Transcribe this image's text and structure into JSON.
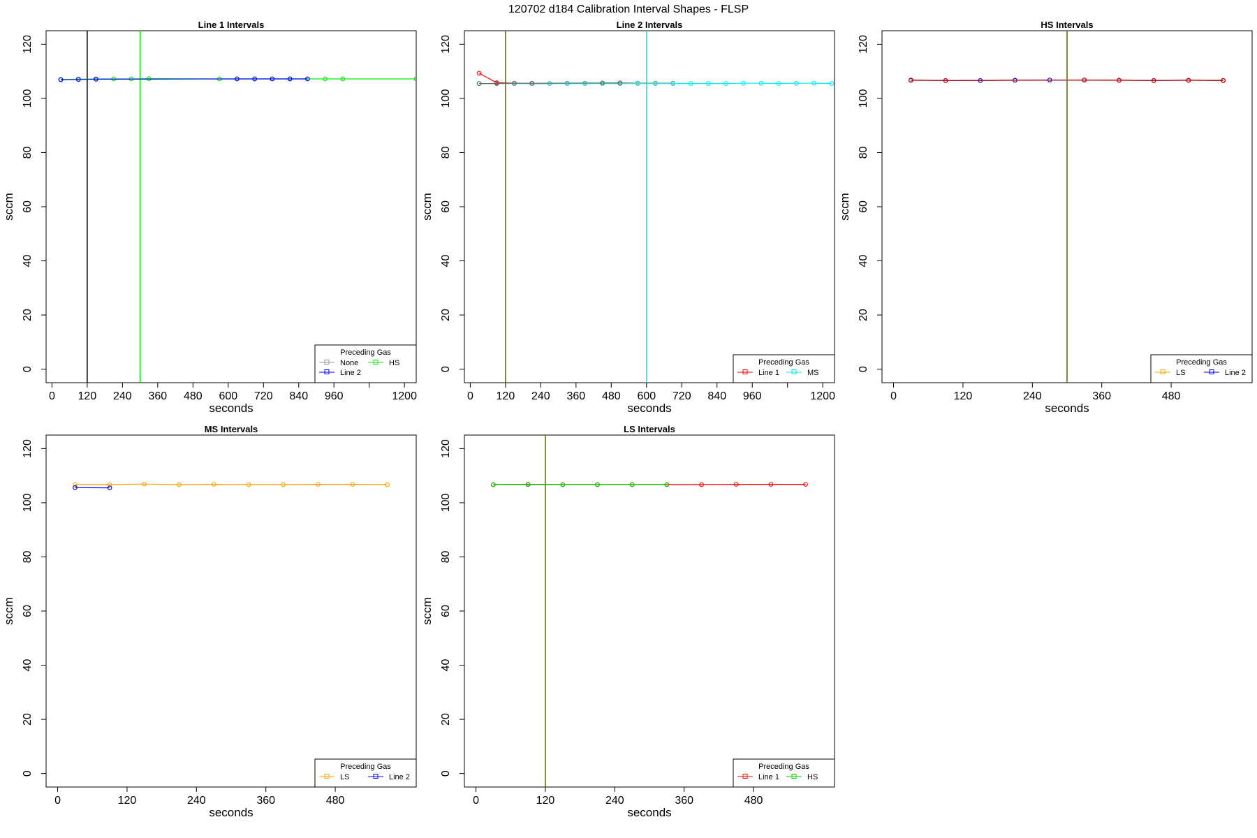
{
  "figure": {
    "title": "120702   d184   Calibration Interval Shapes - FLSP"
  },
  "chart_data": [
    {
      "type": "line",
      "title": "Line 1 Intervals",
      "xlabel": "seconds",
      "ylabel": "sccm",
      "xlim": [
        -20,
        1240
      ],
      "ylim": [
        -5,
        125
      ],
      "xticks": [
        0,
        120,
        240,
        360,
        480,
        600,
        720,
        840,
        960,
        1080,
        1200
      ],
      "xtick_labels": [
        "0",
        "120",
        "240",
        "360",
        "480",
        "600",
        "720",
        "840",
        "960",
        "",
        "1200"
      ],
      "yticks": [
        0,
        20,
        40,
        60,
        80,
        100,
        120
      ],
      "vlines": [
        {
          "x": 120,
          "color": "#000000"
        },
        {
          "x": 300,
          "color": "#00ee00"
        }
      ],
      "legend": {
        "title": "Preceding Gas",
        "position": "bottom-right",
        "columns": 2,
        "entries": [
          "None",
          "HS",
          "Line 2"
        ]
      },
      "series": [
        {
          "name": "None",
          "color": "#999999",
          "x": [
            30,
            90,
            150
          ],
          "y": [
            107.0,
            107.1,
            107.2
          ]
        },
        {
          "name": "HS",
          "color": "#00ee00",
          "x": [
            30,
            90,
            150,
            210,
            270,
            330,
            570,
            630,
            690,
            750,
            810,
            870,
            930,
            990,
            1240
          ],
          "y": [
            107.0,
            107.1,
            107.2,
            107.2,
            107.2,
            107.3,
            107.2,
            107.2,
            107.2,
            107.2,
            107.2,
            107.2,
            107.2,
            107.2,
            107.2
          ]
        },
        {
          "name": "Line 2",
          "color": "#0000ff",
          "x": [
            30,
            90,
            150,
            630,
            690,
            750,
            810,
            870
          ],
          "y": [
            106.9,
            107.0,
            107.1,
            107.2,
            107.2,
            107.2,
            107.2,
            107.2
          ]
        }
      ]
    },
    {
      "type": "line",
      "title": "Line 2 Intervals",
      "xlabel": "seconds",
      "ylabel": "sccm",
      "xlim": [
        -20,
        1240
      ],
      "ylim": [
        -5,
        125
      ],
      "xticks": [
        0,
        120,
        240,
        360,
        480,
        600,
        720,
        840,
        960,
        1080,
        1200
      ],
      "xtick_labels": [
        "0",
        "120",
        "240",
        "360",
        "480",
        "600",
        "720",
        "840",
        "960",
        "",
        "1200"
      ],
      "yticks": [
        0,
        20,
        40,
        60,
        80,
        100,
        120
      ],
      "vlines": [
        {
          "x": 120,
          "color": "#556b00"
        },
        {
          "x": 600,
          "color": "#00eeee"
        }
      ],
      "legend": {
        "title": "Preceding Gas",
        "position": "bottom-right",
        "columns": 2,
        "entries": [
          "Line 1",
          "MS"
        ]
      },
      "series": [
        {
          "name": "Line 1",
          "color": "#ff0000",
          "x": [
            30,
            90,
            150,
            210,
            270,
            330,
            390,
            450,
            510,
            570,
            630,
            690
          ],
          "y": [
            109.3,
            105.8,
            105.6,
            105.5,
            105.5,
            105.6,
            105.6,
            105.6,
            105.7,
            105.6,
            105.6,
            105.6
          ]
        },
        {
          "name": "MS",
          "color": "#00eeee",
          "x": [
            30,
            90,
            150,
            210,
            270,
            330,
            390,
            450,
            510,
            570,
            630,
            690,
            750,
            810,
            870,
            930,
            990,
            1050,
            1110,
            1170,
            1230
          ],
          "y": [
            105.5,
            105.5,
            105.5,
            105.5,
            105.5,
            105.5,
            105.5,
            105.5,
            105.5,
            105.5,
            105.5,
            105.5,
            105.5,
            105.5,
            105.5,
            105.6,
            105.6,
            105.5,
            105.6,
            105.6,
            105.5
          ]
        },
        {
          "name": "",
          "color": "#666666",
          "x": [
            30,
            90,
            150,
            210,
            450,
            510
          ],
          "y": [
            105.5,
            105.5,
            105.6,
            105.6,
            105.7,
            105.7
          ]
        }
      ]
    },
    {
      "type": "line",
      "title": "HS Intervals",
      "xlabel": "seconds",
      "ylabel": "sccm",
      "xlim": [
        -20,
        620
      ],
      "ylim": [
        -5,
        125
      ],
      "xticks": [
        0,
        120,
        240,
        360,
        480
      ],
      "xtick_labels": [
        "0",
        "120",
        "240",
        "360",
        "480"
      ],
      "yticks": [
        0,
        20,
        40,
        60,
        80,
        100,
        120
      ],
      "vlines": [
        {
          "x": 300,
          "color": "#556b00"
        }
      ],
      "legend": {
        "title": "Preceding Gas",
        "position": "bottom-right",
        "columns": 2,
        "entries": [
          "LS",
          "Line 2"
        ]
      },
      "series": [
        {
          "name": "LS",
          "color": "#ffa500",
          "x": [
            30,
            90,
            150,
            210,
            270,
            330,
            390,
            450,
            510,
            570
          ],
          "y": [
            106.7,
            106.6,
            106.6,
            106.8,
            106.8,
            106.8,
            106.7,
            106.6,
            106.7,
            106.7
          ]
        },
        {
          "name": "Line 2",
          "color": "#0000ff",
          "x": [
            30,
            90,
            150,
            210,
            270,
            330,
            390,
            450,
            510,
            570
          ],
          "y": [
            106.7,
            106.6,
            106.6,
            106.7,
            106.8,
            106.8,
            106.7,
            106.6,
            106.7,
            106.6
          ]
        },
        {
          "name": "",
          "color": "#cc0000",
          "x": [
            30,
            90,
            330,
            390,
            450,
            510,
            570
          ],
          "y": [
            106.8,
            106.6,
            106.8,
            106.7,
            106.6,
            106.7,
            106.6
          ]
        }
      ]
    },
    {
      "type": "line",
      "title": "MS Intervals",
      "xlabel": "seconds",
      "ylabel": "sccm",
      "xlim": [
        -20,
        620
      ],
      "ylim": [
        -5,
        125
      ],
      "xticks": [
        0,
        120,
        240,
        360,
        480
      ],
      "xtick_labels": [
        "0",
        "120",
        "240",
        "360",
        "480"
      ],
      "yticks": [
        0,
        20,
        40,
        60,
        80,
        100,
        120
      ],
      "vlines": [],
      "legend": {
        "title": "Preceding Gas",
        "position": "bottom-right",
        "columns": 2,
        "entries": [
          "LS",
          "Line 2"
        ]
      },
      "series": [
        {
          "name": "LS",
          "color": "#ffa500",
          "x": [
            30,
            90,
            150,
            210,
            270,
            330,
            390,
            450,
            510,
            570
          ],
          "y": [
            106.7,
            106.7,
            106.9,
            106.7,
            106.8,
            106.7,
            106.7,
            106.8,
            106.8,
            106.7
          ]
        },
        {
          "name": "Line 2",
          "color": "#0000ff",
          "x": [
            30,
            90
          ],
          "y": [
            105.6,
            105.5
          ]
        }
      ]
    },
    {
      "type": "line",
      "title": "LS Intervals",
      "xlabel": "seconds",
      "ylabel": "sccm",
      "xlim": [
        -20,
        620
      ],
      "ylim": [
        -5,
        125
      ],
      "xticks": [
        0,
        120,
        240,
        360,
        480
      ],
      "xtick_labels": [
        "0",
        "120",
        "240",
        "360",
        "480"
      ],
      "yticks": [
        0,
        20,
        40,
        60,
        80,
        100,
        120
      ],
      "vlines": [
        {
          "x": 120,
          "color": "#556b00"
        }
      ],
      "legend": {
        "title": "Preceding Gas",
        "position": "bottom-right",
        "columns": 2,
        "entries": [
          "Line 1",
          "HS"
        ]
      },
      "series": [
        {
          "name": "Line 1",
          "color": "#ff0000",
          "x": [
            30,
            90,
            150,
            210,
            270,
            330,
            390,
            450,
            510,
            570
          ],
          "y": [
            106.7,
            106.8,
            106.7,
            106.7,
            106.7,
            106.7,
            106.7,
            106.8,
            106.8,
            106.8
          ]
        },
        {
          "name": "HS",
          "color": "#00cc00",
          "x": [
            30,
            90,
            150,
            210,
            270,
            330
          ],
          "y": [
            106.7,
            106.7,
            106.7,
            106.7,
            106.7,
            106.7
          ]
        }
      ]
    }
  ]
}
